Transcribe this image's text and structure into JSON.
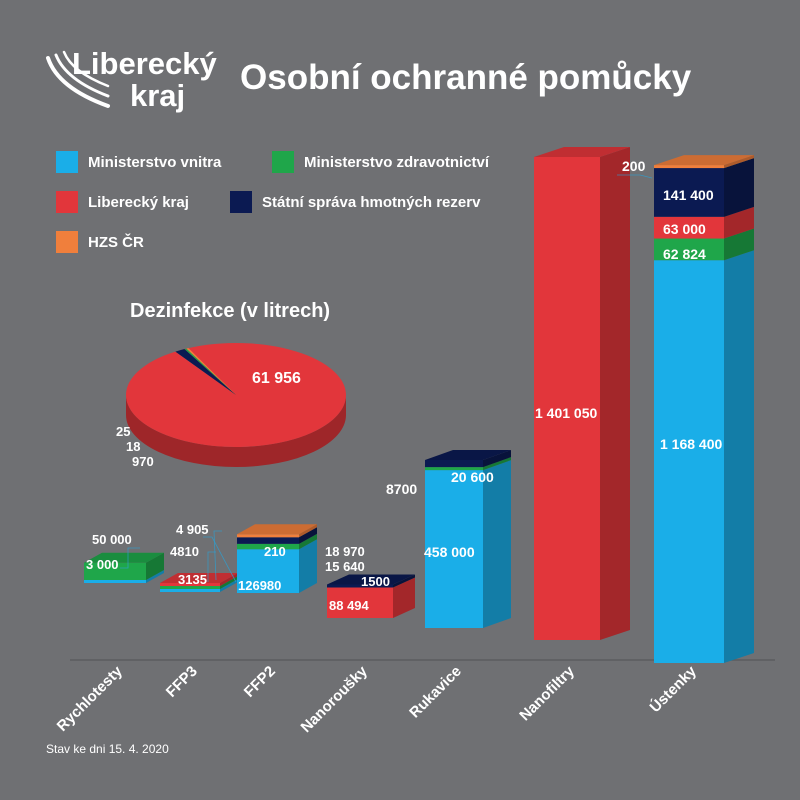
{
  "logo": {
    "line1": "Liberecký",
    "line2": "kraj"
  },
  "title": "Osobní ochranné pomůcky",
  "legend": [
    {
      "label": "Ministerstvo vnitra",
      "color": "#1aaee8"
    },
    {
      "label": "Ministerstvo zdravotnictví",
      "color": "#1fa64a"
    },
    {
      "label": "Liberecký kraj",
      "color": "#e2363b"
    },
    {
      "label": "Státní správa hmotných rezerv",
      "color": "#0b1a52"
    },
    {
      "label": "HZS ČR",
      "color": "#f07f3c"
    }
  ],
  "footer": "Stav ke dni 15. 4. 2020",
  "chart_data": [
    {
      "type": "pie",
      "title": "Dezinfekce (v litrech)",
      "slices": [
        {
          "series": "Liberecký kraj",
          "value": 61956,
          "label": "61 956"
        },
        {
          "series": "Státní správa hmotných rezerv",
          "value": 970,
          "label": "970"
        },
        {
          "series": "Ministerstvo zdravotnictví",
          "value": 18,
          "label": "18"
        },
        {
          "series": "HZS ČR",
          "value": 25,
          "label": "25"
        }
      ]
    },
    {
      "type": "bar",
      "stacked": true,
      "categories": [
        "Rychlotesty",
        "FFP3",
        "FFP2",
        "Nanoroušky",
        "Rukavice",
        "Nanofiltry",
        "Ústenky"
      ],
      "series": [
        {
          "name": "Ministerstvo vnitra",
          "values": [
            3000,
            3135,
            126980,
            0,
            458000,
            0,
            1168400
          ],
          "labels": [
            "3 000",
            "3135",
            "126980",
            "",
            "458 000",
            "",
            "1 168 400"
          ]
        },
        {
          "name": "Ministerstvo zdravotnictví",
          "values": [
            50000,
            4810,
            15640,
            0,
            8700,
            0,
            62824
          ],
          "labels": [
            "50 000",
            "4810",
            "15 640",
            "",
            "8700",
            "",
            "62 824"
          ]
        },
        {
          "name": "Liberecký kraj",
          "values": [
            0,
            4905,
            0,
            88494,
            0,
            1401050,
            63000
          ],
          "labels": [
            "",
            "4 905",
            "",
            "88 494",
            "",
            "1 401 050",
            "63 000"
          ]
        },
        {
          "name": "Státní správa hmotných rezerv",
          "values": [
            0,
            0,
            18970,
            1500,
            20600,
            0,
            141400
          ],
          "labels": [
            "",
            "",
            "18 970",
            "1500",
            "20 600",
            "",
            "141 400"
          ]
        },
        {
          "name": "HZS ČR",
          "values": [
            0,
            0,
            210,
            0,
            0,
            0,
            200
          ],
          "labels": [
            "",
            "",
            "210",
            "",
            "",
            "",
            "200"
          ]
        }
      ]
    }
  ]
}
